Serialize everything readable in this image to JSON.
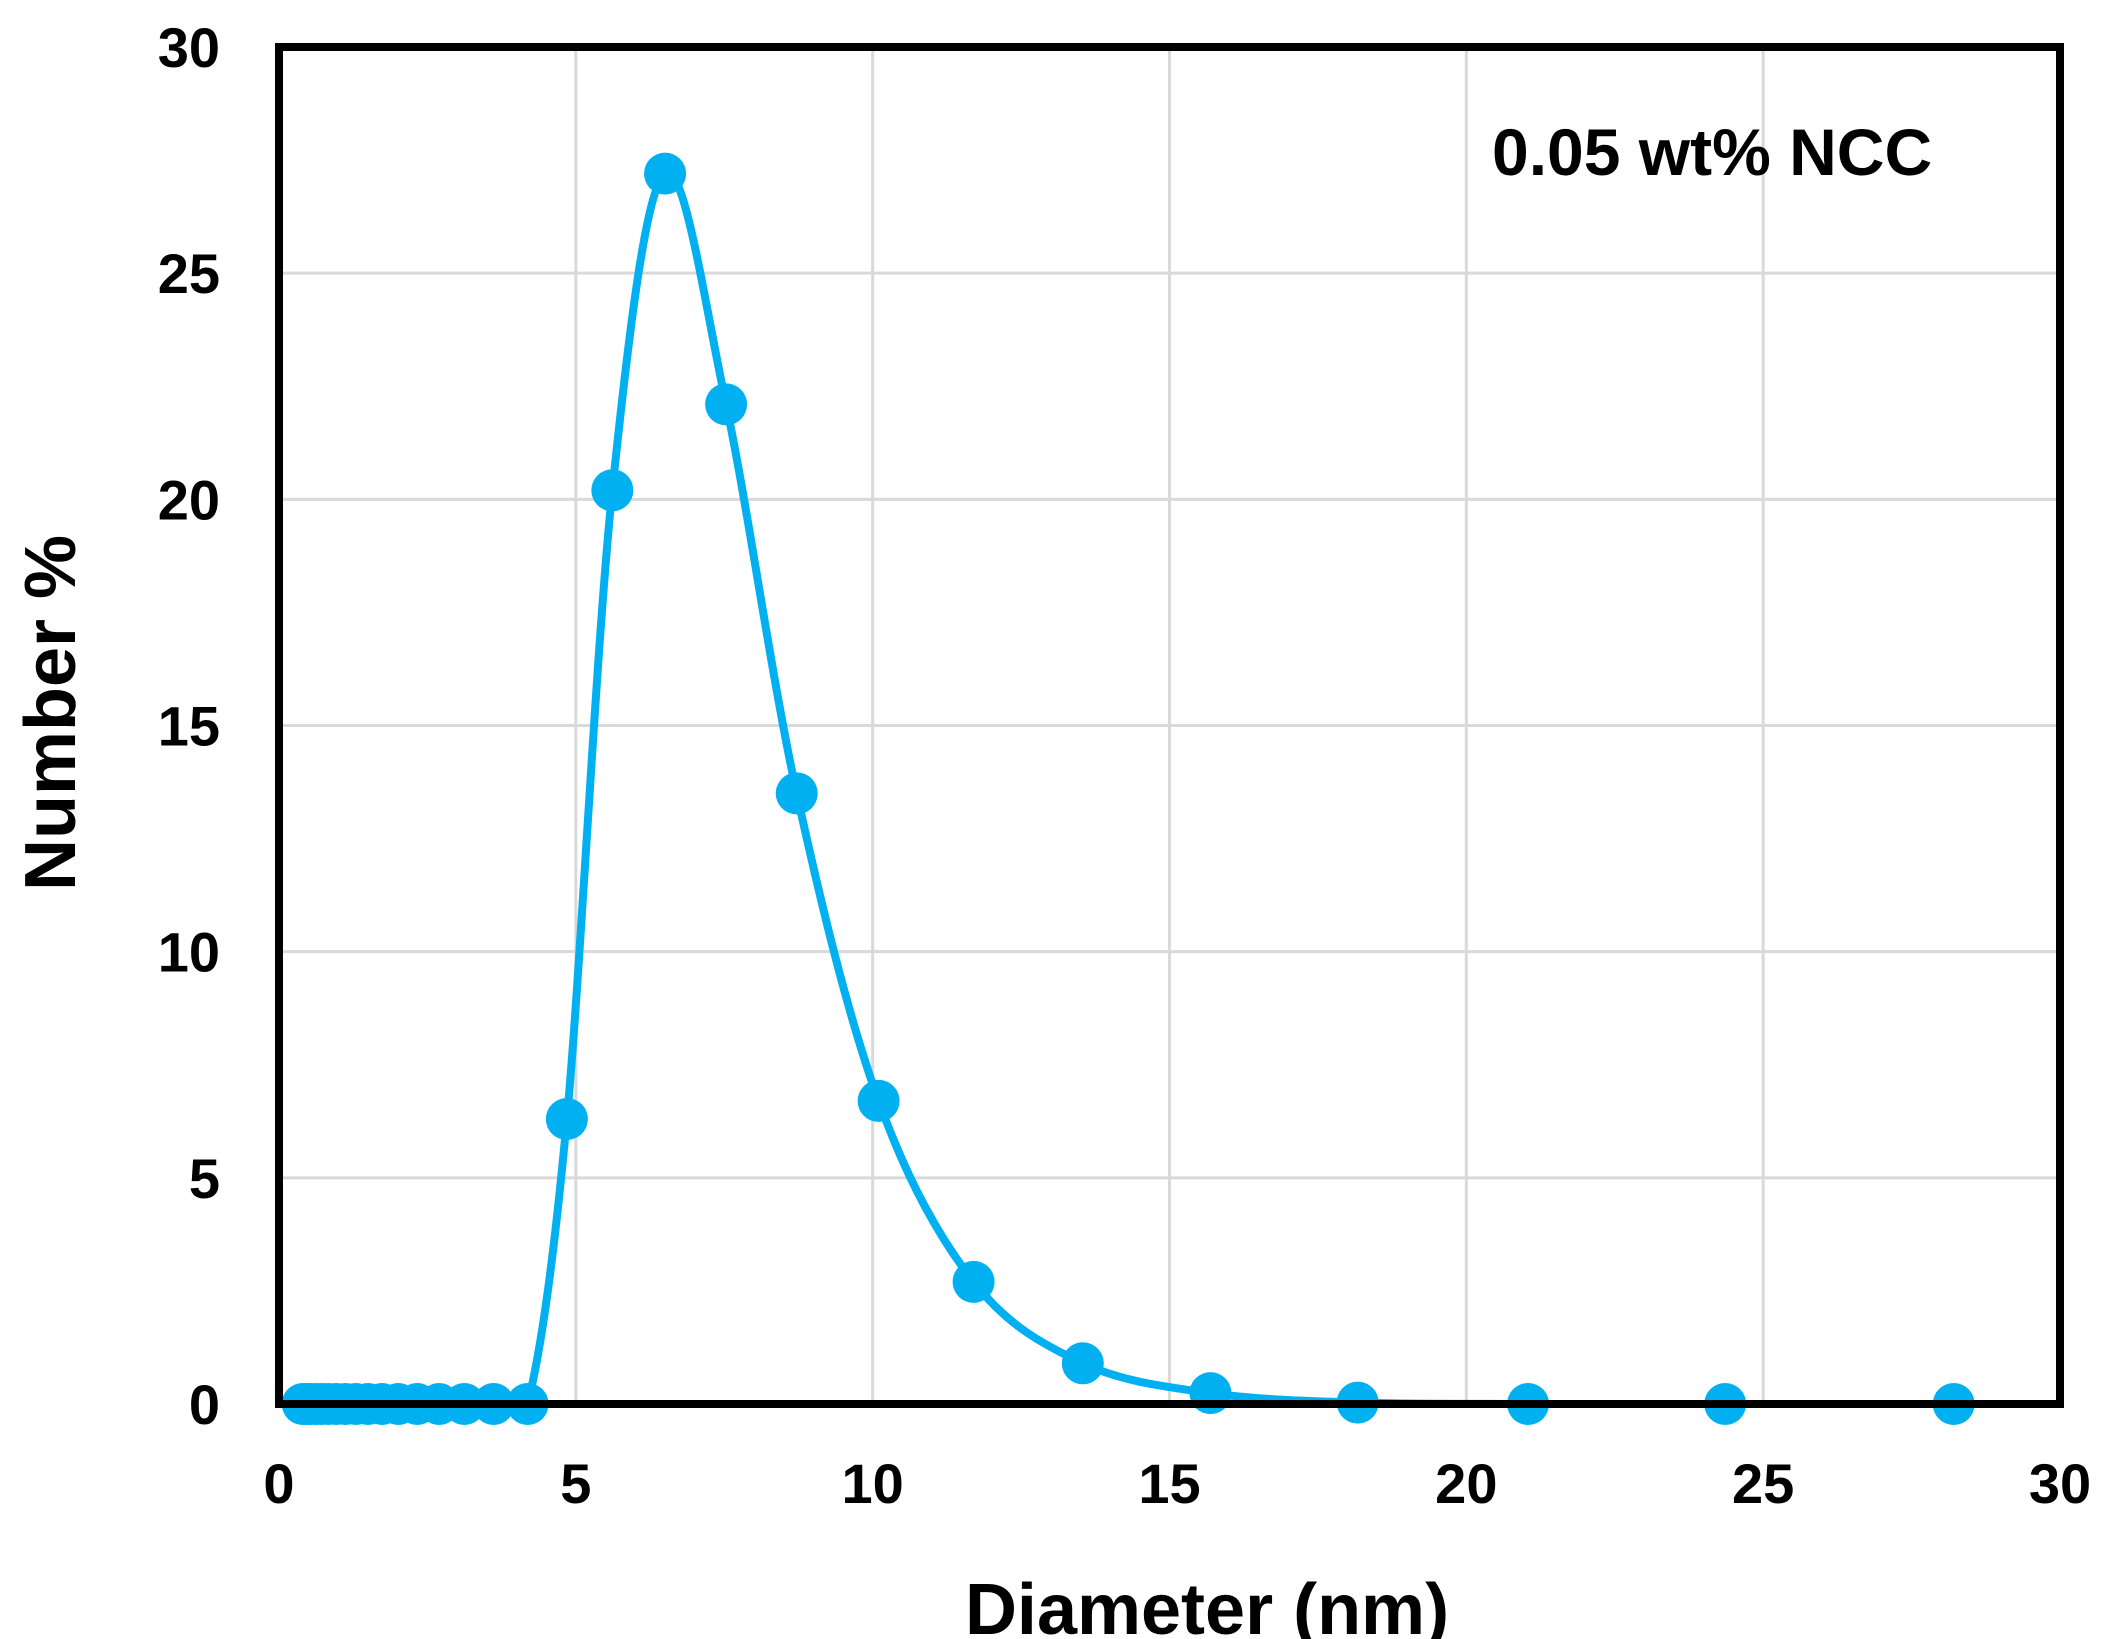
{
  "chart_data": {
    "type": "line",
    "title": "",
    "annotation": "0.05 wt% NCC",
    "xlabel": "Diameter (nm)",
    "ylabel": "Number %",
    "xlim": [
      0,
      30
    ],
    "ylim": [
      0,
      30
    ],
    "x_ticks": [
      0,
      5,
      10,
      15,
      20,
      25,
      30
    ],
    "y_ticks": [
      0,
      5,
      10,
      15,
      20,
      25,
      30
    ],
    "grid": true,
    "legend": null,
    "colors": {
      "series": "#00b0f0",
      "grid": "#d9d9d9",
      "frame": "#000000"
    },
    "series": [
      {
        "name": "0.05 wt% NCC",
        "smooth": true,
        "markers": true,
        "x": [
          0.4,
          0.4632,
          0.5365,
          0.6213,
          0.7195,
          0.8332,
          0.9649,
          1.117,
          1.294,
          1.499,
          1.736,
          2.01,
          2.328,
          2.696,
          3.122,
          3.615,
          4.187,
          4.849,
          5.615,
          6.503,
          7.531,
          8.721,
          10.1,
          11.7,
          13.54,
          15.69,
          18.17,
          21.04,
          24.36,
          28.21
        ],
        "y": [
          0,
          0,
          0,
          0,
          0,
          0,
          0,
          0,
          0,
          0,
          0,
          0,
          0,
          0,
          0,
          0,
          0,
          6.3,
          20.2,
          27.2,
          22.1,
          13.5,
          6.7,
          2.7,
          0.9,
          0.24,
          0.03,
          0,
          0,
          0
        ],
        "line_continues_to_x": 30
      }
    ]
  }
}
